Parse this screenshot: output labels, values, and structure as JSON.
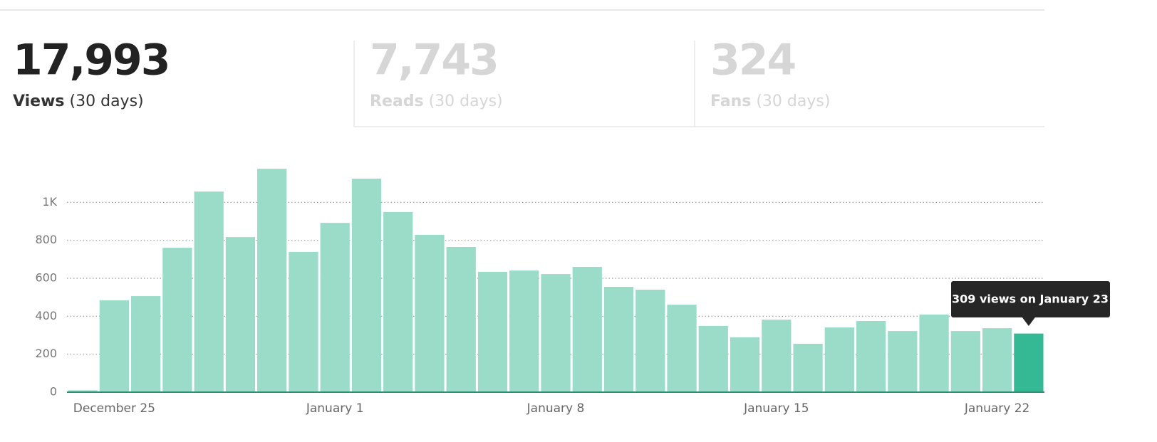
{
  "stats": [
    {
      "value": "17,993",
      "label": "Views",
      "period": "(30 days)",
      "active": true
    },
    {
      "value": "7,743",
      "label": "Reads",
      "period": "(30 days)",
      "active": false
    },
    {
      "value": "324",
      "label": "Fans",
      "period": "(30 days)",
      "active": false
    }
  ],
  "chart_data": {
    "type": "bar",
    "categories": [
      null,
      "December 25",
      null,
      null,
      null,
      null,
      null,
      null,
      "January 1",
      null,
      null,
      null,
      null,
      null,
      null,
      "January 8",
      null,
      null,
      null,
      null,
      null,
      null,
      "January 15",
      null,
      null,
      null,
      null,
      null,
      null,
      "January 22",
      null
    ],
    "values": [
      10,
      484,
      506,
      761,
      1057,
      817,
      1177,
      739,
      892,
      1125,
      949,
      829,
      765,
      634,
      641,
      622,
      660,
      555,
      540,
      461,
      349,
      289,
      382,
      255,
      341,
      375,
      322,
      409,
      322,
      337,
      309
    ],
    "color": "#9bdcc9",
    "highlight_color": "#35b995",
    "ylim": [
      0,
      1200
    ],
    "yticks": [
      0,
      200,
      400,
      600,
      800,
      {
        "value": 1000,
        "label": "1K"
      }
    ],
    "grid": true,
    "tooltip": "309 views on January 23"
  }
}
